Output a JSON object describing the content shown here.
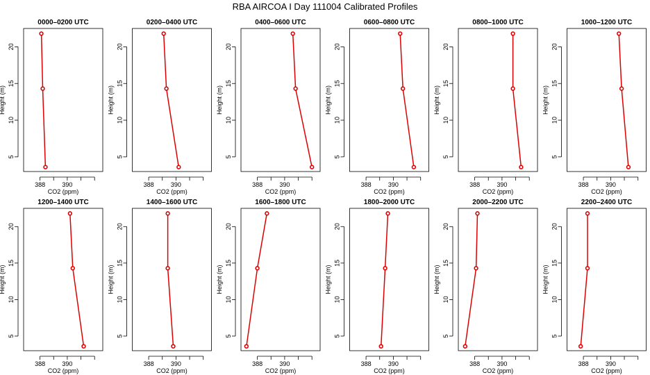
{
  "title": "RBA AIRCOA I  Day 111004  Calibrated Profiles",
  "chart_data": {
    "type": "line",
    "title": "RBA AIRCOA I  Day 111004  Calibrated Profiles",
    "xlabel": "CO2 (ppm)",
    "ylabel": "Height (m)",
    "xlim": [
      386.8,
      392.6
    ],
    "ylim": [
      3,
      22.5
    ],
    "x_ticks": [
      388,
      390
    ],
    "y_ticks": [
      5,
      10,
      15,
      20
    ],
    "grid": false,
    "marker": "open-circle",
    "color": "#dd0000",
    "panels": [
      {
        "title": "0000–0200 UTC",
        "points": [
          {
            "co2": 388.1,
            "height": 21.8
          },
          {
            "co2": 388.2,
            "height": 14.3
          },
          {
            "co2": 388.4,
            "height": 3.6
          }
        ]
      },
      {
        "title": "0200–0400 UTC",
        "points": [
          {
            "co2": 389.1,
            "height": 21.8
          },
          {
            "co2": 389.3,
            "height": 14.3
          },
          {
            "co2": 390.2,
            "height": 3.6
          }
        ]
      },
      {
        "title": "0400–0600 UTC",
        "points": [
          {
            "co2": 390.6,
            "height": 21.8
          },
          {
            "co2": 390.8,
            "height": 14.3
          },
          {
            "co2": 392.0,
            "height": 3.6
          }
        ]
      },
      {
        "title": "0600–0800 UTC",
        "points": [
          {
            "co2": 390.5,
            "height": 21.8
          },
          {
            "co2": 390.7,
            "height": 14.3
          },
          {
            "co2": 391.5,
            "height": 3.6
          }
        ]
      },
      {
        "title": "0800–1000 UTC",
        "points": [
          {
            "co2": 390.8,
            "height": 21.8
          },
          {
            "co2": 390.8,
            "height": 14.3
          },
          {
            "co2": 391.4,
            "height": 3.6
          }
        ]
      },
      {
        "title": "1000–1200 UTC",
        "points": [
          {
            "co2": 390.6,
            "height": 21.8
          },
          {
            "co2": 390.8,
            "height": 14.3
          },
          {
            "co2": 391.3,
            "height": 3.6
          }
        ]
      },
      {
        "title": "1200–1400 UTC",
        "points": [
          {
            "co2": 390.2,
            "height": 21.8
          },
          {
            "co2": 390.4,
            "height": 14.3
          },
          {
            "co2": 391.2,
            "height": 3.6
          }
        ]
      },
      {
        "title": "1400–1600 UTC",
        "points": [
          {
            "co2": 389.4,
            "height": 21.8
          },
          {
            "co2": 389.4,
            "height": 14.3
          },
          {
            "co2": 389.8,
            "height": 3.6
          }
        ]
      },
      {
        "title": "1600–1800 UTC",
        "points": [
          {
            "co2": 388.7,
            "height": 21.8
          },
          {
            "co2": 388.0,
            "height": 14.3
          },
          {
            "co2": 387.2,
            "height": 3.6
          }
        ]
      },
      {
        "title": "1800–2000 UTC",
        "points": [
          {
            "co2": 389.6,
            "height": 21.8
          },
          {
            "co2": 389.4,
            "height": 14.3
          },
          {
            "co2": 389.1,
            "height": 3.6
          }
        ]
      },
      {
        "title": "2000–2200 UTC",
        "points": [
          {
            "co2": 388.2,
            "height": 21.8
          },
          {
            "co2": 388.1,
            "height": 14.3
          },
          {
            "co2": 387.3,
            "height": 3.6
          }
        ]
      },
      {
        "title": "2200–2400 UTC",
        "points": [
          {
            "co2": 388.3,
            "height": 21.8
          },
          {
            "co2": 388.3,
            "height": 14.3
          },
          {
            "co2": 387.8,
            "height": 3.6
          }
        ]
      }
    ]
  }
}
